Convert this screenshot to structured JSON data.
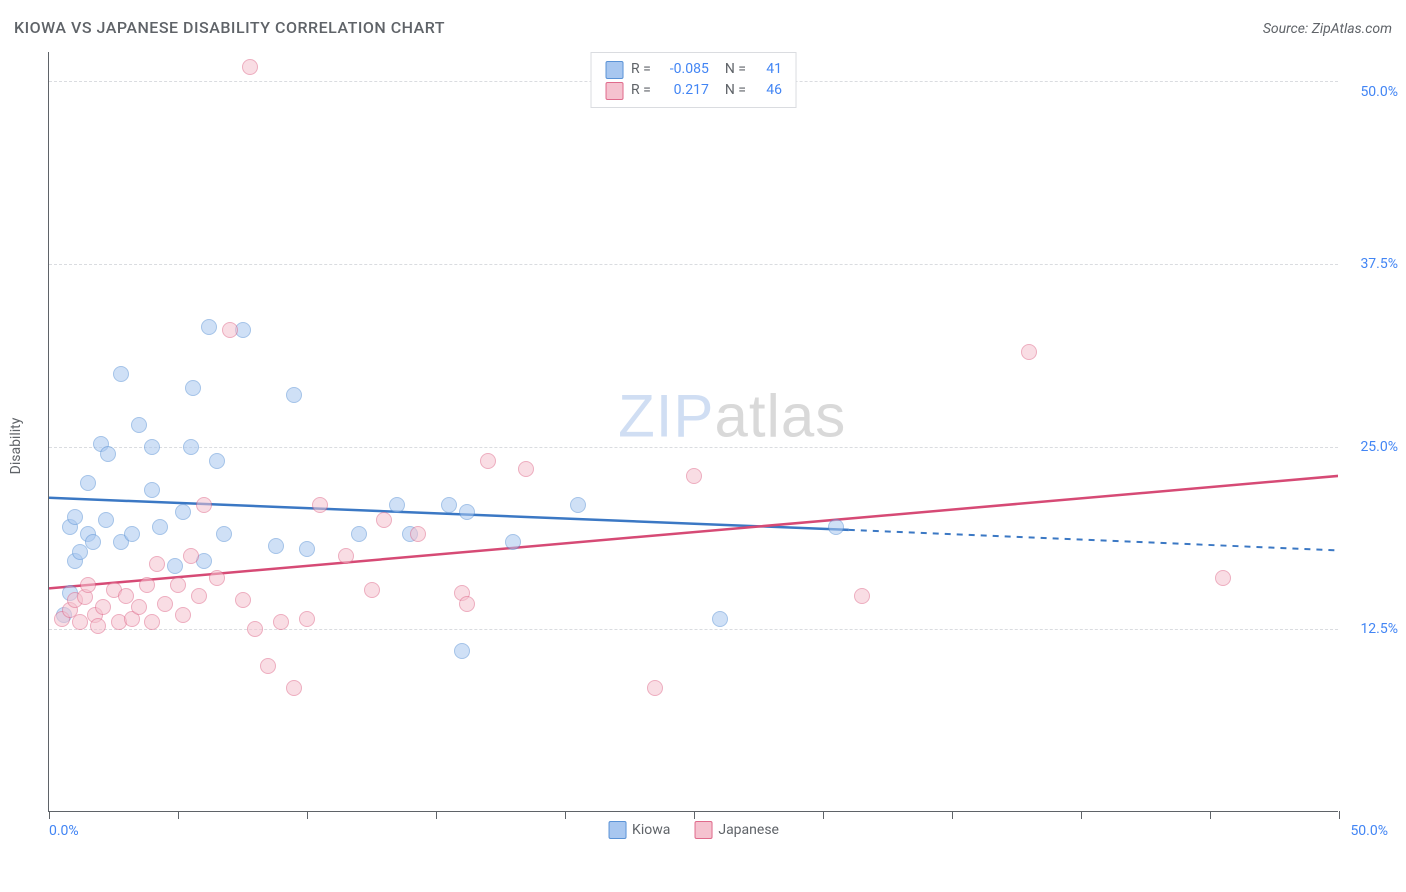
{
  "title": "KIOWA VS JAPANESE DISABILITY CORRELATION CHART",
  "source": "Source: ZipAtlas.com",
  "y_axis_label": "Disability",
  "watermark": {
    "part1": "ZIP",
    "part2": "atlas"
  },
  "chart": {
    "type": "scatter",
    "xlim": [
      0,
      50
    ],
    "ylim": [
      0,
      52
    ],
    "x_ticks": [
      0,
      5,
      10,
      15,
      20,
      25,
      30,
      35,
      40,
      45,
      50
    ],
    "y_ticks": [
      12.5,
      25.0,
      37.5,
      50.0
    ],
    "x_tick_labels": {
      "start": "0.0%",
      "end": "50.0%"
    },
    "y_tick_labels": [
      "12.5%",
      "25.0%",
      "37.5%",
      "50.0%"
    ],
    "grid_color": "#dadce0",
    "axis_color": "#5f6368",
    "background": "#ffffff",
    "marker_radius": 8,
    "marker_opacity": 0.55,
    "series": [
      {
        "name": "Kiowa",
        "color_fill": "#a8c7f0",
        "color_stroke": "#5b93d6",
        "line_color": "#3b78c4",
        "R": "-0.085",
        "N": "41",
        "trend": {
          "x1": 0,
          "y1": 21.5,
          "x2": 31,
          "y2": 19.3,
          "extend_x": 50,
          "extend_y": 17.9,
          "dashed_after": 31
        },
        "points": [
          [
            0.6,
            13.5
          ],
          [
            0.8,
            15.0
          ],
          [
            0.8,
            19.5
          ],
          [
            1.0,
            17.2
          ],
          [
            1.0,
            20.2
          ],
          [
            1.2,
            17.8
          ],
          [
            1.5,
            19.0
          ],
          [
            1.5,
            22.5
          ],
          [
            1.7,
            18.5
          ],
          [
            2.0,
            25.2
          ],
          [
            2.2,
            20.0
          ],
          [
            2.3,
            24.5
          ],
          [
            2.8,
            18.5
          ],
          [
            2.8,
            30.0
          ],
          [
            3.2,
            19.0
          ],
          [
            3.5,
            26.5
          ],
          [
            4.0,
            22.0
          ],
          [
            4.0,
            25.0
          ],
          [
            4.3,
            19.5
          ],
          [
            4.9,
            16.8
          ],
          [
            5.2,
            20.5
          ],
          [
            5.5,
            25.0
          ],
          [
            5.6,
            29.0
          ],
          [
            6.0,
            17.2
          ],
          [
            6.2,
            33.2
          ],
          [
            6.5,
            24.0
          ],
          [
            6.8,
            19.0
          ],
          [
            7.5,
            33.0
          ],
          [
            8.8,
            18.2
          ],
          [
            9.5,
            28.5
          ],
          [
            10.0,
            18.0
          ],
          [
            12.0,
            19.0
          ],
          [
            13.5,
            21.0
          ],
          [
            14.0,
            19.0
          ],
          [
            15.5,
            21.0
          ],
          [
            16.0,
            11.0
          ],
          [
            16.2,
            20.5
          ],
          [
            18.0,
            18.5
          ],
          [
            20.5,
            21.0
          ],
          [
            26.0,
            13.2
          ],
          [
            30.5,
            19.5
          ]
        ]
      },
      {
        "name": "Japanese",
        "color_fill": "#f5c2cf",
        "color_stroke": "#e06b8c",
        "line_color": "#d64a75",
        "R": "0.217",
        "N": "46",
        "trend": {
          "x1": 0,
          "y1": 15.3,
          "x2": 50,
          "y2": 23.0,
          "dashed_after": null
        },
        "points": [
          [
            0.5,
            13.2
          ],
          [
            0.8,
            13.8
          ],
          [
            1.0,
            14.5
          ],
          [
            1.2,
            13.0
          ],
          [
            1.4,
            14.7
          ],
          [
            1.5,
            15.5
          ],
          [
            1.8,
            13.5
          ],
          [
            1.9,
            12.7
          ],
          [
            2.1,
            14.0
          ],
          [
            2.5,
            15.2
          ],
          [
            2.7,
            13.0
          ],
          [
            3.0,
            14.8
          ],
          [
            3.2,
            13.2
          ],
          [
            3.5,
            14.0
          ],
          [
            3.8,
            15.5
          ],
          [
            4.0,
            13.0
          ],
          [
            4.2,
            17.0
          ],
          [
            4.5,
            14.2
          ],
          [
            5.0,
            15.5
          ],
          [
            5.2,
            13.5
          ],
          [
            5.5,
            17.5
          ],
          [
            5.8,
            14.8
          ],
          [
            6.0,
            21.0
          ],
          [
            6.5,
            16.0
          ],
          [
            7.0,
            33.0
          ],
          [
            7.5,
            14.5
          ],
          [
            7.8,
            51.0
          ],
          [
            8.0,
            12.5
          ],
          [
            8.5,
            10.0
          ],
          [
            9.0,
            13.0
          ],
          [
            9.5,
            8.5
          ],
          [
            10.0,
            13.2
          ],
          [
            10.5,
            21.0
          ],
          [
            11.5,
            17.5
          ],
          [
            12.5,
            15.2
          ],
          [
            13.0,
            20.0
          ],
          [
            14.3,
            19.0
          ],
          [
            16.0,
            15.0
          ],
          [
            16.2,
            14.2
          ],
          [
            17.0,
            24.0
          ],
          [
            18.5,
            23.5
          ],
          [
            23.5,
            8.5
          ],
          [
            25.0,
            23.0
          ],
          [
            31.5,
            14.8
          ],
          [
            38.0,
            31.5
          ],
          [
            45.5,
            16.0
          ]
        ]
      }
    ]
  },
  "bottom_legend": [
    {
      "label": "Kiowa",
      "series": 0
    },
    {
      "label": "Japanese",
      "series": 1
    }
  ]
}
